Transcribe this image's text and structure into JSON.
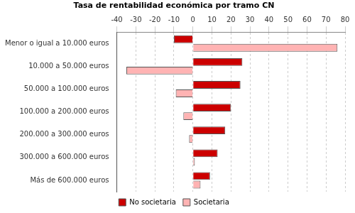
{
  "chart_data": {
    "type": "bar",
    "orientation": "horizontal",
    "title": "Tasa de rentabilidad económica por tramo CN",
    "categories": [
      "Menor o igual a 10.000 euros",
      "10.000 a 50.000 euros",
      "50.000 a 100.000 euros",
      "100.000 a 200.000 euros",
      "200.000 a 300.000 euros",
      "300.000 a 600.000 euros",
      "Más de 600.000 euros"
    ],
    "series": [
      {
        "name": "No societaria",
        "color": "#cc0000",
        "values": [
          -10,
          26,
          25,
          20,
          17,
          13,
          9
        ]
      },
      {
        "name": "Societaria",
        "color": "#ffb3b3",
        "values": [
          76,
          -35,
          -9,
          -5,
          -2,
          1,
          4
        ]
      }
    ],
    "xlim": [
      -40,
      80
    ],
    "xticks": [
      -40,
      -30,
      -20,
      -10,
      0,
      10,
      20,
      30,
      40,
      50,
      60,
      70,
      80
    ],
    "grid": true,
    "legend": "bottom"
  }
}
